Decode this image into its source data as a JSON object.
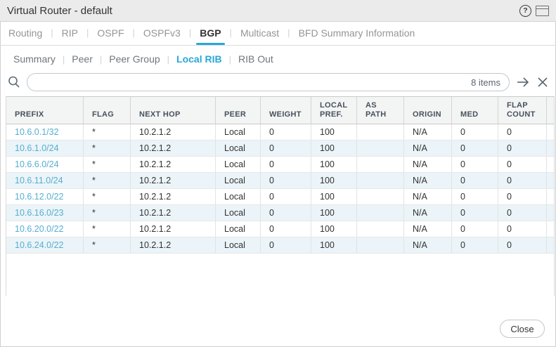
{
  "window": {
    "title": "Virtual Router - default",
    "help_glyph": "?"
  },
  "tabs": {
    "items": [
      "Routing",
      "RIP",
      "OSPF",
      "OSPFv3",
      "BGP",
      "Multicast",
      "BFD Summary Information"
    ],
    "active": "BGP"
  },
  "subtabs": {
    "items": [
      "Summary",
      "Peer",
      "Peer Group",
      "Local RIB",
      "RIB Out"
    ],
    "active": "Local RIB"
  },
  "toolbar": {
    "search_value": "",
    "items_count": "8 items",
    "icons": [
      "search-icon",
      "apply-filter-arrow-icon",
      "clear-filter-x-icon"
    ]
  },
  "table": {
    "columns": [
      "PREFIX",
      "FLAG",
      "NEXT HOP",
      "PEER",
      "WEIGHT",
      "LOCAL\nPREF.",
      "AS PATH",
      "ORIGIN",
      "MED",
      "FLAP\nCOUNT"
    ],
    "rows": [
      {
        "cells": [
          "10.6.0.1/32",
          "*",
          "10.2.1.2",
          "Local",
          "0",
          "100",
          "",
          "N/A",
          "0",
          "0"
        ]
      },
      {
        "cells": [
          "10.6.1.0/24",
          "*",
          "10.2.1.2",
          "Local",
          "0",
          "100",
          "",
          "N/A",
          "0",
          "0"
        ]
      },
      {
        "cells": [
          "10.6.6.0/24",
          "*",
          "10.2.1.2",
          "Local",
          "0",
          "100",
          "",
          "N/A",
          "0",
          "0"
        ]
      },
      {
        "cells": [
          "10.6.11.0/24",
          "*",
          "10.2.1.2",
          "Local",
          "0",
          "100",
          "",
          "N/A",
          "0",
          "0"
        ]
      },
      {
        "cells": [
          "10.6.12.0/22",
          "*",
          "10.2.1.2",
          "Local",
          "0",
          "100",
          "",
          "N/A",
          "0",
          "0"
        ]
      },
      {
        "cells": [
          "10.6.16.0/23",
          "*",
          "10.2.1.2",
          "Local",
          "0",
          "100",
          "",
          "N/A",
          "0",
          "0"
        ]
      },
      {
        "cells": [
          "10.6.20.0/22",
          "*",
          "10.2.1.2",
          "Local",
          "0",
          "100",
          "",
          "N/A",
          "0",
          "0"
        ]
      },
      {
        "cells": [
          "10.6.24.0/22",
          "*",
          "10.2.1.2",
          "Local",
          "0",
          "100",
          "",
          "N/A",
          "0",
          "0"
        ]
      }
    ]
  },
  "footer": {
    "close_label": "Close"
  },
  "colors": {
    "accent": "#29a7d9",
    "link": "#56aed1",
    "row_alt": "#ebf4f8",
    "titlebar_bg": "#ebebeb",
    "header_bg": "#f3f4f4"
  }
}
